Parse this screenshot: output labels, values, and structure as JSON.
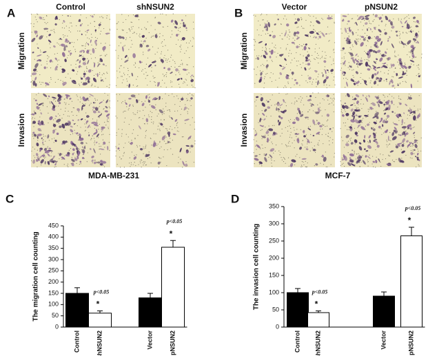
{
  "panels": [
    {
      "label": "A",
      "columns": [
        "Control",
        "shNSUN2"
      ],
      "rows": [
        "Migration",
        "Invasion"
      ],
      "cell_line": "MDA-MB-231"
    },
    {
      "label": "B",
      "columns": [
        "Vector",
        "pNSUN2"
      ],
      "rows": [
        "Migration",
        "Invasion"
      ],
      "cell_line": "MCF-7"
    }
  ],
  "chart_data": [
    {
      "type": "bar",
      "label": "C",
      "y_label": "The migration cell counting",
      "categories": [
        "Control",
        "shNSUN2",
        "Vector",
        "pNSUN2"
      ],
      "values": [
        150,
        62,
        130,
        355
      ],
      "errors": [
        25,
        10,
        20,
        30
      ],
      "colors": [
        "#000000",
        "#ffffff",
        "#000000",
        "#ffffff"
      ],
      "ylim": [
        0,
        450
      ],
      "yticks": [
        0,
        50,
        100,
        150,
        200,
        250,
        300,
        350,
        400,
        450
      ],
      "annotations": [
        {
          "text": "p<0.05",
          "mark": "*"
        },
        {
          "text": "p<0.05",
          "mark": "*"
        }
      ]
    },
    {
      "type": "bar",
      "label": "D",
      "y_label": "The invasion cell counting",
      "categories": [
        "Control",
        "shNSUN2",
        "Vector",
        "pNSUN2"
      ],
      "values": [
        100,
        42,
        90,
        265
      ],
      "errors": [
        12,
        5,
        12,
        25
      ],
      "colors": [
        "#000000",
        "#ffffff",
        "#000000",
        "#ffffff"
      ],
      "ylim": [
        0,
        350
      ],
      "yticks": [
        0,
        50,
        100,
        150,
        200,
        250,
        300,
        350
      ],
      "annotations": [
        {
          "text": "p<0.05",
          "mark": "*"
        },
        {
          "text": "p<0.05",
          "mark": "*"
        }
      ]
    }
  ]
}
